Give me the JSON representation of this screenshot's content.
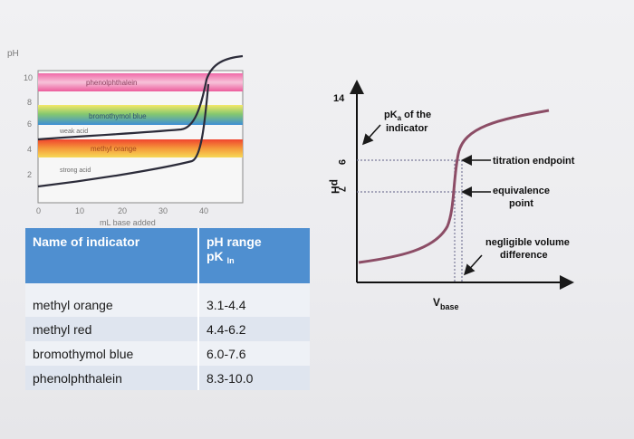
{
  "left_chart": {
    "y_axis_label": "pH",
    "y_ticks": [
      "10",
      "8",
      "6",
      "4",
      "2"
    ],
    "x_ticks": [
      "0",
      "10",
      "20",
      "30",
      "40"
    ],
    "x_axis_label": "mL base added",
    "bands": [
      {
        "label": "phenolphthalein",
        "colors": [
          "#f06aa8",
          "#f7c2d9",
          "#ec5d9c"
        ]
      },
      {
        "label": "bromothymol blue",
        "colors": [
          "#f5e86a",
          "#86c86e",
          "#3e8fd6"
        ]
      },
      {
        "label": "methyl orange",
        "colors": [
          "#f0452e",
          "#f59a3b",
          "#f6d957"
        ]
      }
    ],
    "curve_labels": {
      "weak": "weak acid",
      "strong": "strong acid"
    }
  },
  "table": {
    "headers": {
      "name": "Name of indicator",
      "range": "pH range",
      "pk": "pK",
      "pk_sub": "In"
    },
    "rows": [
      {
        "name": "methyl orange",
        "range": "3.1-4.4"
      },
      {
        "name": "methyl red",
        "range": "4.4-6.2"
      },
      {
        "name": "bromothymol blue",
        "range": "6.0-7.6"
      },
      {
        "name": "phenolphthalein",
        "range": "8.3-10.0"
      }
    ]
  },
  "right_diagram": {
    "y_label": "pH",
    "ticks": {
      "top": "14",
      "nine": "9",
      "seven": "7"
    },
    "pka_label": {
      "pre": "pK",
      "sub": "a",
      "line1_rest": " of the",
      "line2": "indicator"
    },
    "titration_endpoint": "titration endpoint",
    "equivalence": {
      "line1": "equivalence",
      "line2": "point"
    },
    "negligible": {
      "line1": "negligible volume",
      "line2": "difference"
    },
    "x_label": {
      "main": "V",
      "sub": "base"
    }
  },
  "colors": {
    "curve": "#8c4d66",
    "header_blue": "#4f8fd0",
    "row_odd": "#dfe5ef",
    "row_even": "#eef1f6"
  }
}
